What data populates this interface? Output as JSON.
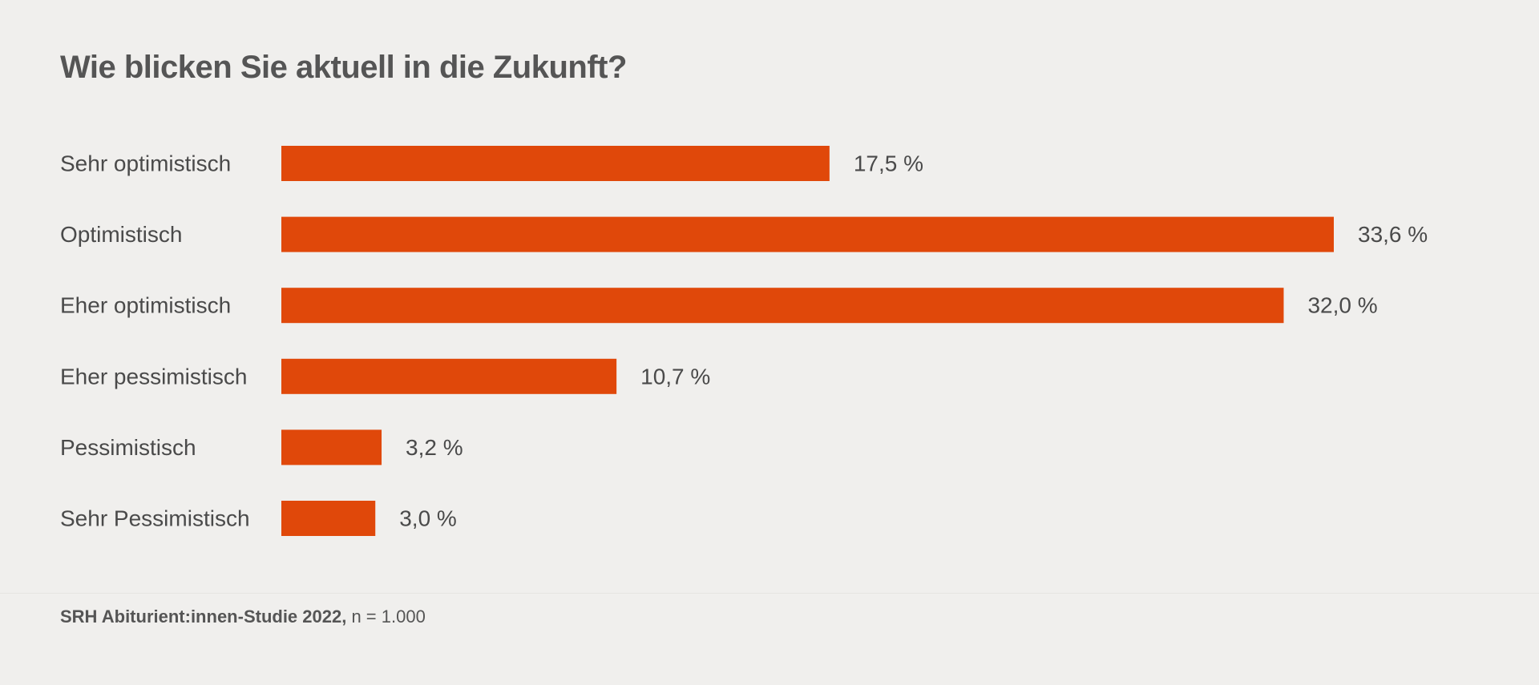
{
  "chart_data": {
    "type": "bar",
    "orientation": "horizontal",
    "title": "Wie blicken Sie aktuell in die Zukunft?",
    "categories": [
      "Sehr optimistisch",
      "Optimistisch",
      "Eher optimistisch",
      "Eher pessimistisch",
      "Pessimistisch",
      "Sehr Pessimistisch"
    ],
    "values": [
      17.5,
      33.6,
      32.0,
      10.7,
      3.2,
      3.0
    ],
    "value_labels": [
      "17,5 %",
      "33,6 %",
      "32,0 %",
      "10,7 %",
      "3,2 %",
      "3,0 %"
    ],
    "unit": "%",
    "xlim": [
      0,
      33.6
    ],
    "grid": false,
    "legend": "none",
    "bar_color": "#e0480a"
  },
  "footer": {
    "source_bold": "SRH Abiturient:innen-Studie 2022,",
    "source_rest": " n = 1.000"
  },
  "colors": {
    "background": "#f0efed",
    "text": "#4a4a4a",
    "bar": "#e0480a"
  }
}
